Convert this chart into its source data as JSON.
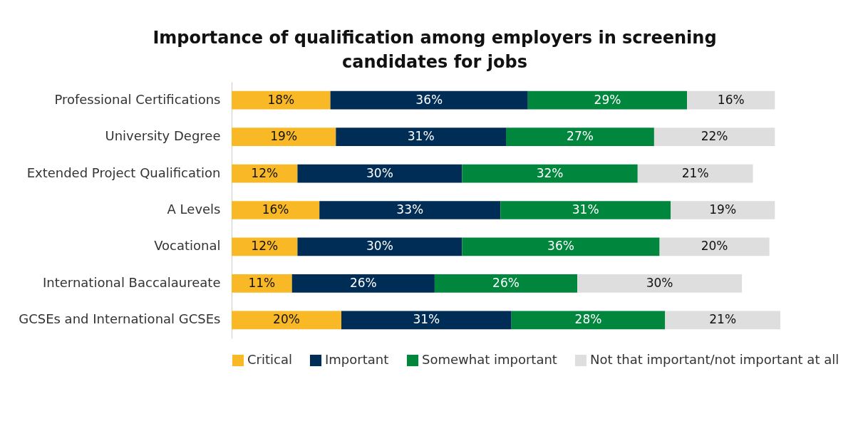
{
  "chart_data": {
    "type": "bar",
    "orientation": "horizontal",
    "stacked": true,
    "legend": "bottom",
    "grid": false,
    "title": "Importance of qualification among employers in screening candidates for jobs",
    "categories": [
      "Professional Certifications",
      "University Degree",
      "Extended Project Qualification",
      "A Levels",
      "Vocational",
      "International Baccalaureate",
      "GCSEs and International GCSEs"
    ],
    "series": [
      {
        "name": "Critical",
        "color": "#f9b826",
        "values": [
          18,
          19,
          12,
          16,
          12,
          11,
          20
        ],
        "value_labels": [
          "18%",
          "19%",
          "12%",
          "16%",
          "12%",
          "11%",
          "20%"
        ]
      },
      {
        "name": "Important",
        "color": "#002d56",
        "values": [
          36,
          31,
          30,
          33,
          30,
          26,
          31
        ],
        "value_labels": [
          "36%",
          "31%",
          "30%",
          "33%",
          "30%",
          "26%",
          "31%"
        ]
      },
      {
        "name": "Somewhat important",
        "color": "#00873d",
        "values": [
          29,
          27,
          32,
          31,
          36,
          26,
          28
        ],
        "value_labels": [
          "29%",
          "27%",
          "32%",
          "31%",
          "36%",
          "26%",
          "28%"
        ]
      },
      {
        "name": "Not that important/not important at all",
        "color": "#dedede",
        "values": [
          16,
          22,
          21,
          19,
          20,
          30,
          21
        ],
        "value_labels": [
          "16%",
          "22%",
          "21%",
          "19%",
          "20%",
          "30%",
          "21%"
        ]
      }
    ]
  }
}
